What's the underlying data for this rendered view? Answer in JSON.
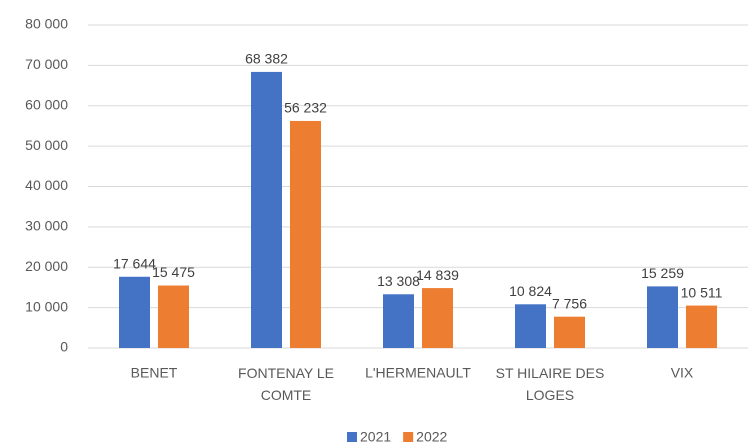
{
  "chart_data": {
    "type": "bar",
    "categories": [
      "BENET",
      "FONTENAY LE COMTE",
      "L'HERMENAULT",
      "ST HILAIRE DES LOGES",
      "VIX"
    ],
    "series": [
      {
        "name": "2021",
        "color": "#4472c4",
        "values": [
          17644,
          68382,
          13308,
          10824,
          15259
        ],
        "value_labels": [
          "17 644",
          "68 382",
          "13 308",
          "10 824",
          "15 259"
        ]
      },
      {
        "name": "2022",
        "color": "#ed7d31",
        "values": [
          15475,
          56232,
          14839,
          7756,
          10511
        ],
        "value_labels": [
          "15 475",
          "56 232",
          "14 839",
          "7 756",
          "10 511"
        ]
      }
    ],
    "ylim": [
      0,
      80000
    ],
    "yticks": [
      0,
      {
        "value": 10000,
        "label": "10 000"
      },
      {
        "value": 20000,
        "label": "20 000"
      },
      {
        "value": 30000,
        "label": "30 000"
      },
      {
        "value": 40000,
        "label": "40 000"
      },
      {
        "value": 50000,
        "label": "50 000"
      },
      {
        "value": 60000,
        "label": "60 000"
      },
      {
        "value": 70000,
        "label": "70 000"
      },
      {
        "value": 80000,
        "label": "80 000"
      }
    ],
    "grid": true,
    "legend": "bottom"
  }
}
